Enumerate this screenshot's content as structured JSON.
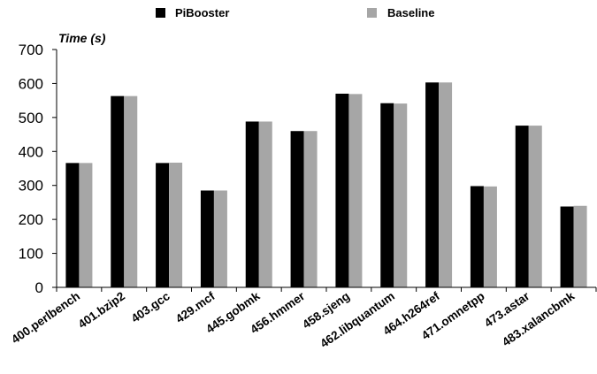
{
  "chart_data": {
    "type": "bar",
    "ylabel": "Time (s)",
    "ylim": [
      0,
      700
    ],
    "yticks": [
      0,
      100,
      200,
      300,
      400,
      500,
      600,
      700
    ],
    "grid": false,
    "legend_position": "top",
    "categories": [
      "400.perlbench",
      "401.bzip2",
      "403.gcc",
      "429.mcf",
      "445.gobmk",
      "456.hmmer",
      "458.sjeng",
      "462.libquantum",
      "464.h264ref",
      "471.omnetpp",
      "473.astar",
      "483.xalancbmk"
    ],
    "series": [
      {
        "name": "PiBooster",
        "color": "#000000",
        "values": [
          366,
          563,
          366,
          285,
          488,
          460,
          570,
          542,
          603,
          298,
          476,
          238
        ]
      },
      {
        "name": "Baseline",
        "color": "#a6a6a6",
        "values": [
          366,
          563,
          367,
          285,
          488,
          460,
          569,
          541,
          603,
          297,
          476,
          240
        ]
      }
    ]
  }
}
